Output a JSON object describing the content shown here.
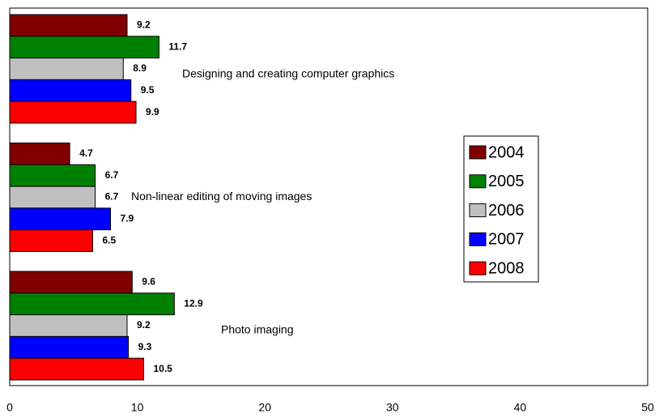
{
  "chart_data": {
    "type": "hbar",
    "categories": [
      "Designing and creating computer graphics",
      "Non-linear editing of moving images",
      "Photo imaging"
    ],
    "series": [
      {
        "name": "2004",
        "color": "#800000",
        "values": [
          9.2,
          4.7,
          9.6
        ]
      },
      {
        "name": "2005",
        "color": "#008000",
        "values": [
          11.7,
          6.7,
          12.9
        ]
      },
      {
        "name": "2006",
        "color": "#c0c0c0",
        "values": [
          8.9,
          6.7,
          9.2
        ]
      },
      {
        "name": "2007",
        "color": "#0000ff",
        "values": [
          9.5,
          7.9,
          9.3
        ]
      },
      {
        "name": "2008",
        "color": "#ff0000",
        "values": [
          9.9,
          6.5,
          10.5
        ]
      }
    ],
    "xlim": [
      0,
      50
    ],
    "xticks": [
      0,
      10,
      20,
      30,
      40,
      50
    ],
    "grid": false,
    "legend": "right"
  }
}
